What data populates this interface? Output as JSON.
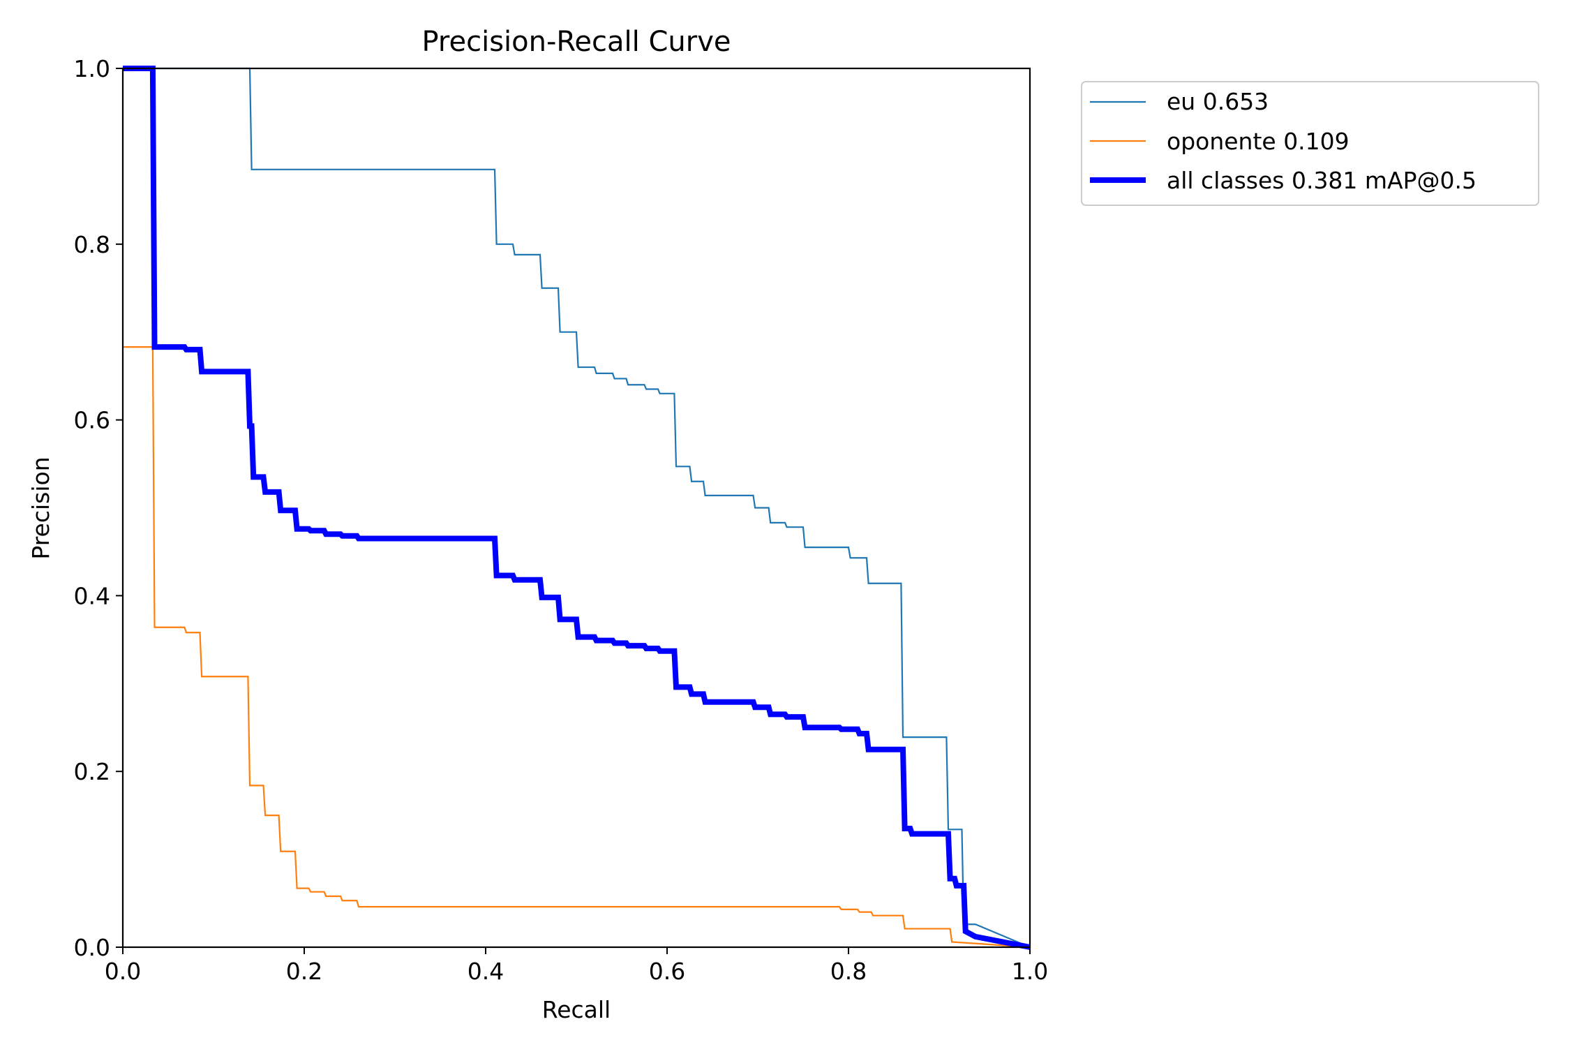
{
  "chart_data": {
    "type": "line",
    "title": "Precision-Recall Curve",
    "xlabel": "Recall",
    "ylabel": "Precision",
    "xlim": [
      0.0,
      1.0
    ],
    "ylim": [
      0.0,
      1.0
    ],
    "xticks": [
      "0.0",
      "0.2",
      "0.4",
      "0.6",
      "0.8",
      "1.0"
    ],
    "yticks": [
      "0.0",
      "0.2",
      "0.4",
      "0.6",
      "0.8",
      "1.0"
    ],
    "grid": false,
    "legend_position": "outside-top-right",
    "series": [
      {
        "name": "eu 0.653",
        "color": "#1f77b4",
        "linewidth": "thin",
        "x": [
          0.0,
          0.14,
          0.142,
          0.41,
          0.412,
          0.43,
          0.432,
          0.46,
          0.462,
          0.48,
          0.482,
          0.5,
          0.502,
          0.52,
          0.522,
          0.54,
          0.542,
          0.555,
          0.557,
          0.575,
          0.577,
          0.59,
          0.592,
          0.608,
          0.61,
          0.625,
          0.627,
          0.64,
          0.642,
          0.695,
          0.697,
          0.712,
          0.714,
          0.73,
          0.732,
          0.75,
          0.752,
          0.8,
          0.802,
          0.82,
          0.822,
          0.858,
          0.86,
          0.908,
          0.91,
          0.925,
          0.927,
          0.94,
          1.0
        ],
        "y": [
          1.0,
          1.0,
          0.885,
          0.885,
          0.8,
          0.8,
          0.788,
          0.788,
          0.75,
          0.75,
          0.7,
          0.7,
          0.66,
          0.66,
          0.653,
          0.653,
          0.647,
          0.647,
          0.64,
          0.64,
          0.635,
          0.635,
          0.63,
          0.63,
          0.547,
          0.547,
          0.53,
          0.53,
          0.514,
          0.514,
          0.5,
          0.5,
          0.483,
          0.483,
          0.478,
          0.478,
          0.455,
          0.455,
          0.443,
          0.443,
          0.414,
          0.414,
          0.239,
          0.239,
          0.134,
          0.134,
          0.026,
          0.026,
          0.0
        ]
      },
      {
        "name": "oponente 0.109",
        "color": "#ff7f0e",
        "linewidth": "thin",
        "x": [
          0.0,
          0.033,
          0.035,
          0.068,
          0.07,
          0.085,
          0.087,
          0.138,
          0.14,
          0.155,
          0.157,
          0.172,
          0.174,
          0.19,
          0.192,
          0.205,
          0.207,
          0.222,
          0.224,
          0.24,
          0.242,
          0.258,
          0.26,
          0.79,
          0.792,
          0.81,
          0.812,
          0.825,
          0.827,
          0.86,
          0.862,
          0.912,
          0.914,
          1.0
        ],
        "y": [
          0.683,
          0.683,
          0.364,
          0.364,
          0.358,
          0.358,
          0.308,
          0.308,
          0.184,
          0.184,
          0.15,
          0.15,
          0.109,
          0.109,
          0.067,
          0.067,
          0.063,
          0.063,
          0.058,
          0.058,
          0.053,
          0.053,
          0.046,
          0.046,
          0.043,
          0.043,
          0.04,
          0.04,
          0.036,
          0.036,
          0.021,
          0.021,
          0.006,
          0.0
        ]
      },
      {
        "name": "all classes 0.381 mAP@0.5",
        "color": "#0000ff",
        "linewidth": "thick",
        "x": [
          0.0,
          0.033,
          0.035,
          0.068,
          0.07,
          0.085,
          0.087,
          0.138,
          0.14,
          0.142,
          0.144,
          0.155,
          0.157,
          0.172,
          0.174,
          0.19,
          0.192,
          0.205,
          0.207,
          0.222,
          0.224,
          0.24,
          0.242,
          0.258,
          0.26,
          0.41,
          0.412,
          0.43,
          0.432,
          0.46,
          0.462,
          0.48,
          0.482,
          0.5,
          0.502,
          0.52,
          0.522,
          0.54,
          0.542,
          0.555,
          0.557,
          0.575,
          0.577,
          0.59,
          0.592,
          0.608,
          0.61,
          0.625,
          0.627,
          0.64,
          0.642,
          0.695,
          0.697,
          0.712,
          0.714,
          0.73,
          0.732,
          0.75,
          0.752,
          0.79,
          0.792,
          0.81,
          0.812,
          0.82,
          0.822,
          0.86,
          0.862,
          0.868,
          0.87,
          0.91,
          0.912,
          0.917,
          0.919,
          0.927,
          0.929,
          0.94,
          1.0
        ],
        "y": [
          1.0,
          1.0,
          0.683,
          0.683,
          0.68,
          0.68,
          0.655,
          0.655,
          0.593,
          0.593,
          0.535,
          0.535,
          0.518,
          0.518,
          0.497,
          0.497,
          0.476,
          0.476,
          0.474,
          0.474,
          0.47,
          0.47,
          0.468,
          0.468,
          0.465,
          0.465,
          0.423,
          0.423,
          0.418,
          0.418,
          0.398,
          0.398,
          0.373,
          0.373,
          0.353,
          0.353,
          0.349,
          0.349,
          0.346,
          0.346,
          0.343,
          0.343,
          0.34,
          0.34,
          0.337,
          0.337,
          0.296,
          0.296,
          0.288,
          0.288,
          0.279,
          0.279,
          0.273,
          0.273,
          0.265,
          0.265,
          0.262,
          0.262,
          0.25,
          0.25,
          0.248,
          0.248,
          0.243,
          0.243,
          0.225,
          0.225,
          0.135,
          0.135,
          0.129,
          0.129,
          0.078,
          0.078,
          0.07,
          0.07,
          0.018,
          0.012,
          0.0
        ]
      }
    ]
  }
}
